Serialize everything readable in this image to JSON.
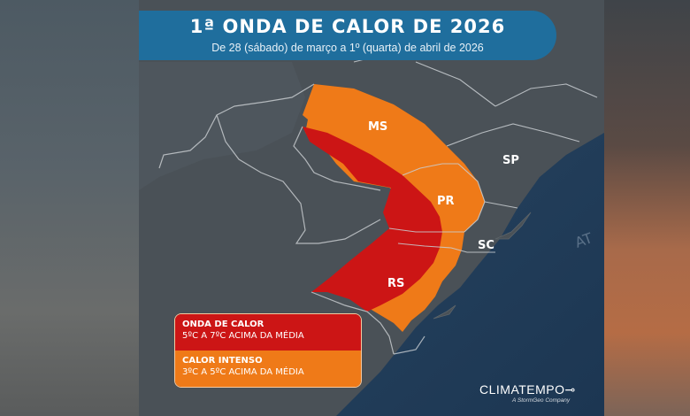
{
  "header": {
    "title": "1ª ONDA DE CALOR DE 2026",
    "subtitle": "De 28 (sábado) de março a 1º (quarta) de abril de 2026"
  },
  "map": {
    "states": [
      "MS",
      "SP",
      "PR",
      "SC",
      "RS"
    ],
    "ocean_text": "AT",
    "colors": {
      "land": "#4b5258",
      "ocean": "#24425f",
      "heat_wave": "#cc1515",
      "intense_heat": "#ef7a18",
      "borders": "#c9ced2"
    }
  },
  "legend": {
    "heat_wave_title": "ONDA DE CALOR",
    "heat_wave_desc": "5ºC A 7ºC ACIMA DA MÉDIA",
    "intense_title": "CALOR INTENSO",
    "intense_desc": "3ºC A 5ºC ACIMA DA MÉDIA"
  },
  "brand": {
    "name": "CLIMATEMPO",
    "tagline": "A StormGeo Company"
  }
}
